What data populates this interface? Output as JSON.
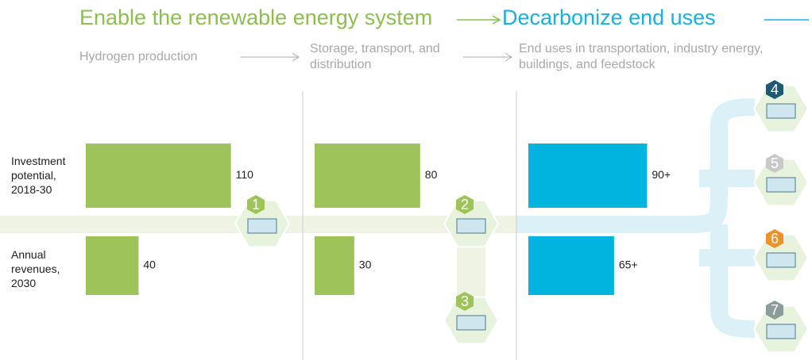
{
  "headline": {
    "left": "Enable the renewable energy system",
    "right": "Decarbonize end uses"
  },
  "chart_data": {
    "type": "bar",
    "orientation": "horizontal",
    "categories": [
      "Investment potential, 2018-30",
      "Annual revenues, 2030"
    ],
    "panels": [
      {
        "title": "Hydrogen production",
        "color": "#9dc35a",
        "values": [
          110,
          40
        ]
      },
      {
        "title": "Storage, transport, and distribution",
        "color": "#9dc35a",
        "values": [
          80,
          30
        ]
      },
      {
        "title": "End uses in transportation, industry energy, buildings, and feedstock",
        "color": "#00b4e0",
        "values": [
          90,
          65
        ],
        "value_labels": [
          "90+",
          "65+"
        ]
      }
    ]
  },
  "icons": [
    {
      "label": "1",
      "color": "#9dc35a"
    },
    {
      "label": "2",
      "color": "#9dc35a"
    },
    {
      "label": "3",
      "color": "#9dc35a"
    },
    {
      "label": "4",
      "color": "#1e5a73"
    },
    {
      "label": "5",
      "color": "#c9c9c9"
    },
    {
      "label": "6",
      "color": "#f0912b"
    },
    {
      "label": "7",
      "color": "#8c9c9a"
    }
  ]
}
